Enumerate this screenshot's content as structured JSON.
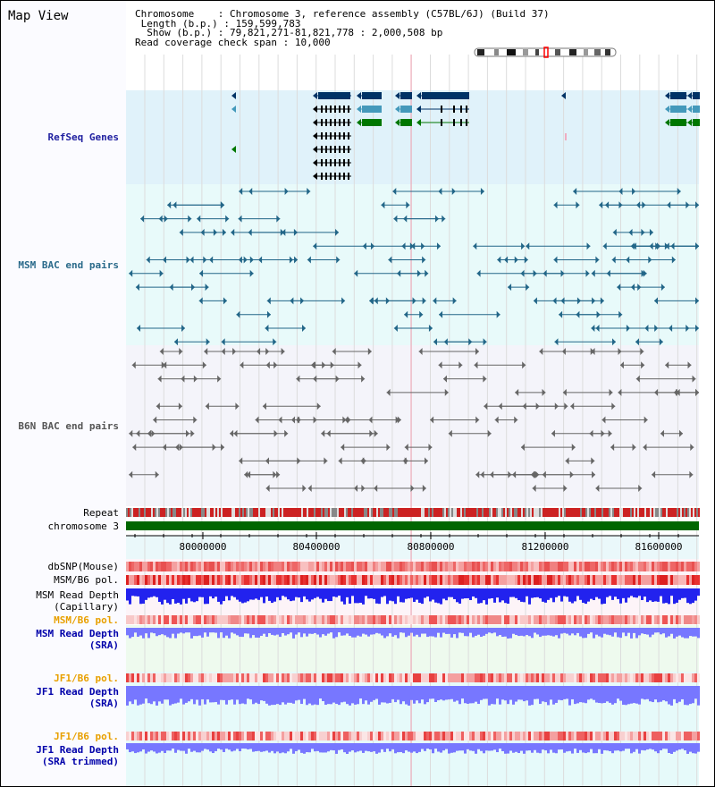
{
  "view_title": "Map View",
  "header": {
    "chromosome_label": "Chromosome",
    "chromosome_value": "Chromosome 3, reference assembly (C57BL/6J) (Build 37)",
    "length_label": "Length (b.p.)",
    "length_value": "159,599,783",
    "show_label": "Show (b.p.)",
    "show_value": "79,821,271-81,821,778 : 2,000,508 bp",
    "coverage_label": "Read coverage check span",
    "coverage_value": "10,000"
  },
  "tracks": {
    "refseq": "RefSeq Genes",
    "msm_bac": "MSM BAC end pairs",
    "b6n_bac": "B6N BAC end pairs",
    "repeat": "Repeat",
    "chromosome": "chromosome 3",
    "dbsnp": "dbSNP(Mouse)",
    "msm_b6_pol_1": "MSM/B6 pol.",
    "msm_depth_cap_1": "MSM Read Depth",
    "msm_depth_cap_2": "(Capillary)",
    "msm_b6_pol_2": "MSM/B6 pol.",
    "msm_depth_sra_1": "MSM Read Depth",
    "msm_depth_sra_2": "(SRA)",
    "jf1_b6_pol_1": "JF1/B6 pol.",
    "jf1_depth_sra_1": "JF1 Read Depth",
    "jf1_depth_sra_2": "(SRA)",
    "jf1_b6_pol_2": "JF1/B6 pol.",
    "jf1_depth_trim_1": "JF1 Read Depth",
    "jf1_depth_trim_2": "(SRA trimmed)"
  },
  "axis": {
    "ticks": [
      "80000000",
      "80400000",
      "80800000",
      "81200000",
      "81600000"
    ]
  },
  "colors": {
    "refseq_bg": "#e0f2fa",
    "msm_bg": "#e8fafa",
    "b6n_bg": "#f4f4fa",
    "gene_dark": "#003366",
    "gene_mid": "#4499bb",
    "gene_green": "#007700",
    "msm_pair": "#226688",
    "b6n_pair": "#666666",
    "chromosome_bar": "#006600",
    "repeat_red": "#cc2222",
    "depth_blue": "#2222ee",
    "depth_light": "#7777ff"
  }
}
